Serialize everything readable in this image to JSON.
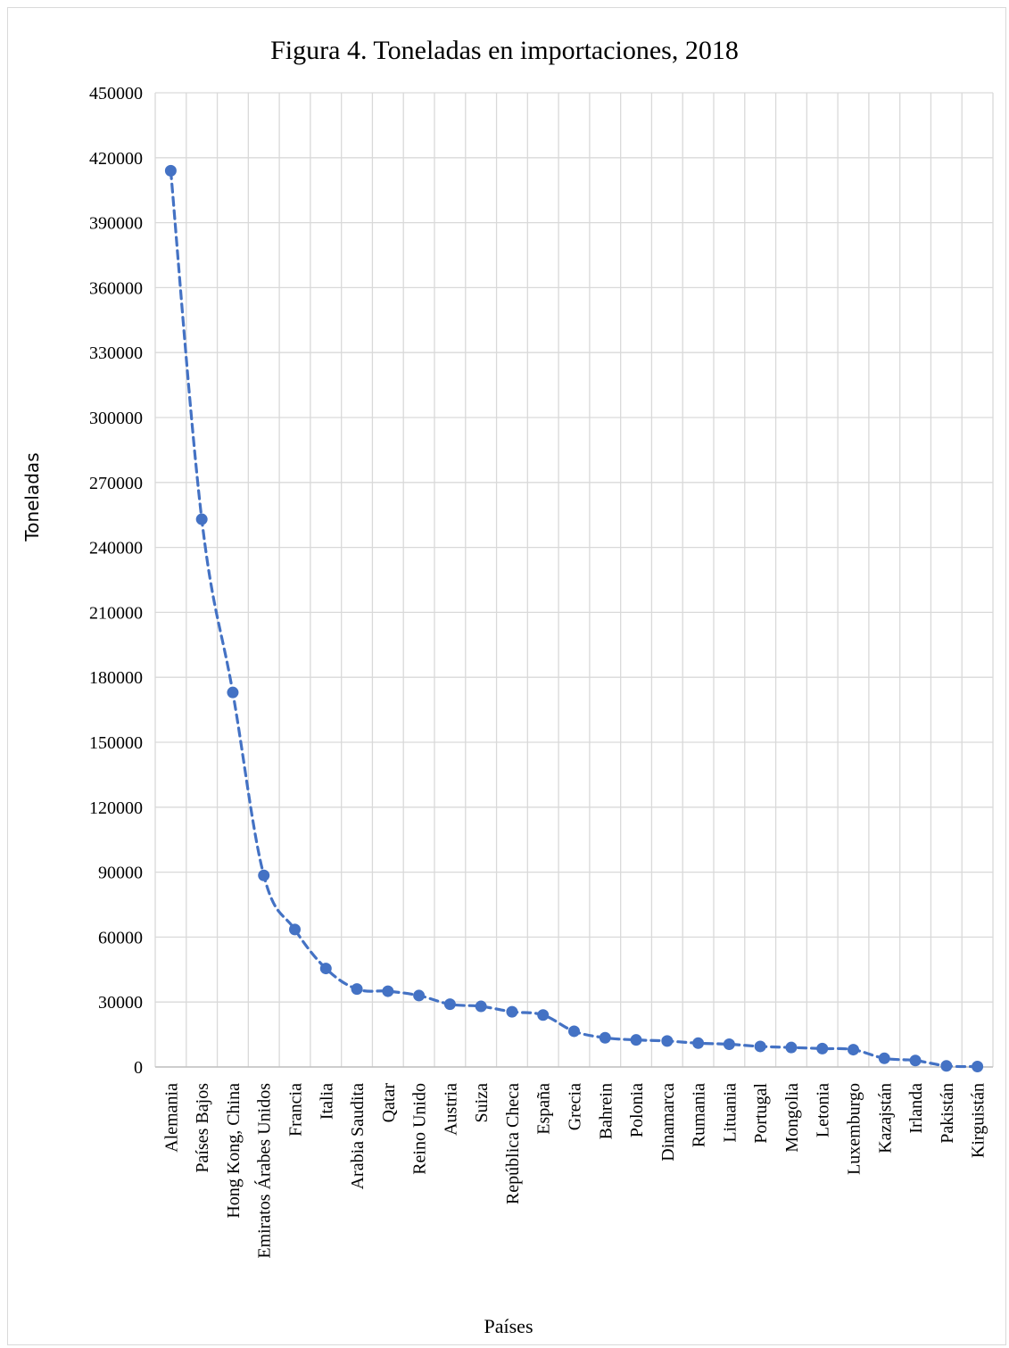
{
  "chart_data": {
    "type": "line",
    "title": "Figura 4. Toneladas en importaciones, 2018",
    "xlabel": "Países",
    "ylabel": "Toneladas",
    "ylim": [
      0,
      450000
    ],
    "yticks": [
      0,
      30000,
      60000,
      90000,
      120000,
      150000,
      180000,
      210000,
      240000,
      270000,
      300000,
      330000,
      360000,
      390000,
      420000,
      450000
    ],
    "grid": true,
    "line_style": "dashed",
    "marker": "circle",
    "color": "#4472c4",
    "categories": [
      "Alemania",
      "Países Bajos",
      "Hong Kong, China",
      "Emiratos Árabes Unidos",
      "Francia",
      "Italia",
      "Arabia Saudita",
      "Qatar",
      "Reino Unido",
      "Austria",
      "Suiza",
      "República Checa",
      "España",
      "Grecia",
      "Bahrein",
      "Polonia",
      "Dinamarca",
      "Rumania",
      "Lituania",
      "Portugal",
      "Mongolia",
      "Letonia",
      "Luxemburgo",
      "Kazajstán",
      "Irlanda",
      "Pakistán",
      "Kirguistán"
    ],
    "series": [
      {
        "values": [
          414000,
          253000,
          173000,
          88500,
          63500,
          45500,
          36000,
          35000,
          33000,
          29000,
          28000,
          25500,
          24000,
          16500,
          13500,
          12500,
          12000,
          11000,
          10500,
          9500,
          9000,
          8500,
          8000,
          4000,
          3000,
          500,
          200
        ]
      }
    ]
  }
}
